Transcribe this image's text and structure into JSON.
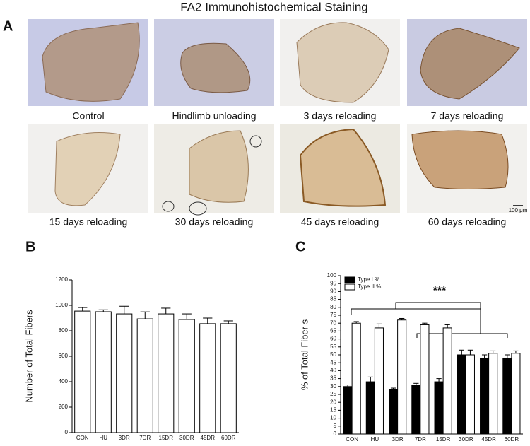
{
  "title": "FA2 Immunohistochemical Staining",
  "panels": {
    "a": "A",
    "b": "B",
    "c": "C"
  },
  "captions": [
    "Control",
    "Hindlimb unloading",
    "3 days reloading",
    "7 days reloading",
    "15 days reloading",
    "30 days reloading",
    "45 days reloading",
    "60 days reloading"
  ],
  "scale_bar": "100 μm",
  "chart_data": [
    {
      "type": "bar",
      "ylabel": "Number of Total Fibers",
      "categories": [
        "CON",
        "HU",
        "3DR",
        "7DR",
        "15DR",
        "30DR",
        "45DR",
        "60DR"
      ],
      "values": [
        955,
        950,
        933,
        894,
        933,
        889,
        856,
        856
      ],
      "errors": [
        28,
        15,
        60,
        55,
        45,
        44,
        44,
        22
      ],
      "color": "#ffffff",
      "ylim": [
        0,
        1200
      ],
      "yticks": [
        0,
        200,
        400,
        600,
        800,
        1000,
        1200
      ]
    },
    {
      "type": "bar",
      "ylabel": "% of Total Fiber s",
      "annotation": "***",
      "categories": [
        "CON",
        "HU",
        "3DR",
        "7DR",
        "15DR",
        "30DR",
        "45DR",
        "60DR"
      ],
      "series": [
        {
          "name": "Type I %",
          "color": "#000000",
          "values": [
            30,
            33,
            28,
            31,
            33,
            50,
            48,
            48
          ],
          "errors": [
            1,
            3,
            1,
            1,
            2,
            3,
            2,
            2
          ]
        },
        {
          "name": "Type II %",
          "color": "#ffffff",
          "values": [
            70,
            67,
            72,
            69,
            67,
            50,
            51,
            51
          ],
          "errors": [
            1,
            2.5,
            1,
            1,
            2,
            3,
            1.5,
            1.5
          ]
        }
      ],
      "ylim": [
        0,
        100
      ],
      "yticks": [
        0,
        5,
        10,
        15,
        20,
        25,
        30,
        35,
        40,
        45,
        50,
        55,
        60,
        65,
        70,
        75,
        80,
        85,
        90,
        95,
        100
      ]
    }
  ]
}
